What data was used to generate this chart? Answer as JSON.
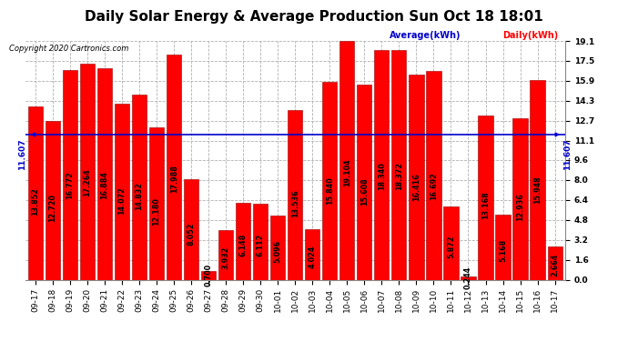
{
  "title": "Daily Solar Energy & Average Production Sun Oct 18 18:01",
  "copyright": "Copyright 2020 Cartronics.com",
  "average_label": "Average(kWh)",
  "daily_label": "Daily(kWh)",
  "average_value": 11.607,
  "average_left_label": "11.607",
  "average_right_label": "11.607",
  "categories": [
    "09-17",
    "09-18",
    "09-19",
    "09-20",
    "09-21",
    "09-22",
    "09-23",
    "09-24",
    "09-25",
    "09-26",
    "09-27",
    "09-28",
    "09-29",
    "09-30",
    "10-01",
    "10-02",
    "10-03",
    "10-04",
    "10-05",
    "10-06",
    "10-07",
    "10-08",
    "10-09",
    "10-10",
    "10-11",
    "10-12",
    "10-13",
    "10-14",
    "10-15",
    "10-16",
    "10-17"
  ],
  "values": [
    13.852,
    12.72,
    16.772,
    17.264,
    16.884,
    14.072,
    14.832,
    12.18,
    17.988,
    8.052,
    0.7,
    3.932,
    6.148,
    6.112,
    5.096,
    13.536,
    4.024,
    15.84,
    19.104,
    15.608,
    18.34,
    18.372,
    16.416,
    16.692,
    5.872,
    0.244,
    13.168,
    5.168,
    12.936,
    15.948,
    2.664
  ],
  "bar_color": "#ff0000",
  "bar_edge_color": "#cc0000",
  "average_line_color": "#0000cc",
  "background_color": "#ffffff",
  "grid_color": "#b0b0b0",
  "ylim": [
    0.0,
    19.1
  ],
  "yticks": [
    0.0,
    1.6,
    3.2,
    4.8,
    6.4,
    8.0,
    9.6,
    11.1,
    12.7,
    14.3,
    15.9,
    17.5,
    19.1
  ],
  "title_fontsize": 11,
  "tick_fontsize": 6.5,
  "value_fontsize": 5.8
}
